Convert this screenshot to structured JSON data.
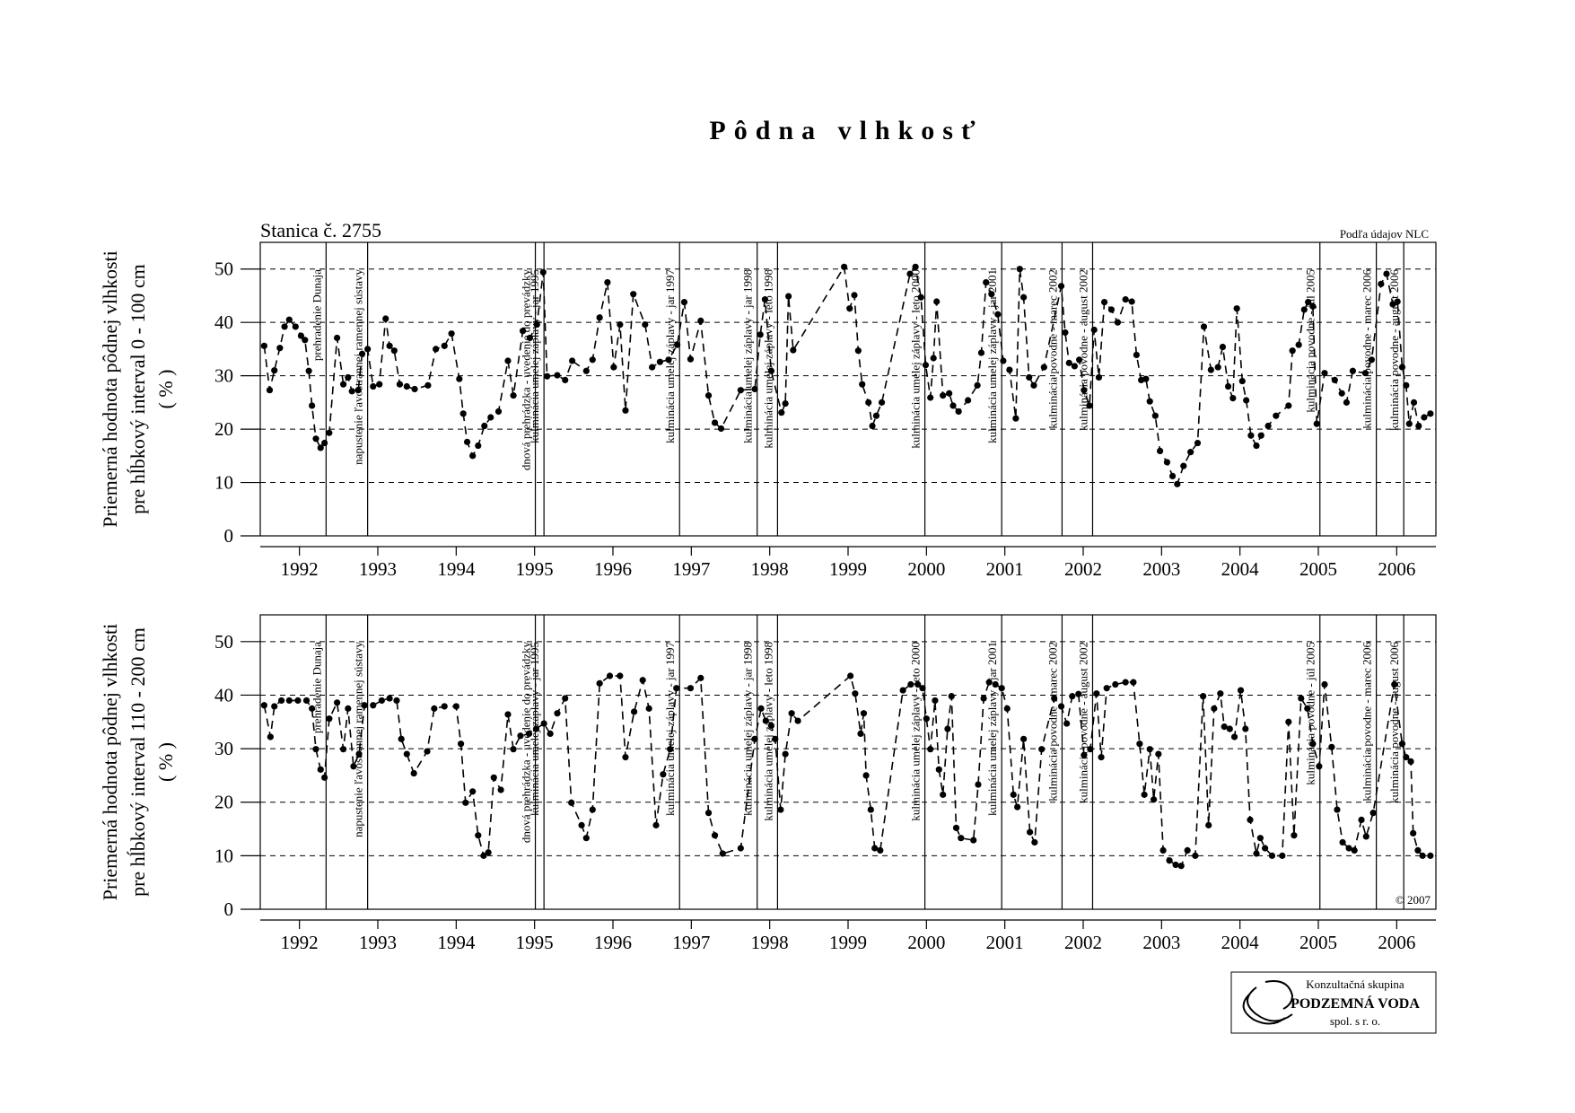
{
  "title": "Pôdna vlhkosť",
  "chart_data": [
    {
      "type": "line",
      "color": "#000000",
      "line_style": "dashed",
      "marker": "circle",
      "y_label": [
        "Priemerná hodnota pôdnej vlhkosti",
        "pre hĺbkový interval 0 - 100 cm",
        "( % )"
      ],
      "annotations": {
        "station": "Stanica č. 2755",
        "source": "Podľa údajov NLC"
      },
      "xlim": [
        1992,
        2007
      ],
      "ylim": [
        0,
        55
      ],
      "yticks": [
        0,
        10,
        20,
        30,
        40,
        50
      ],
      "grid": true,
      "xticks": [
        {
          "value": 1992.5,
          "label": "1992"
        },
        {
          "value": 1993.5,
          "label": "1993"
        },
        {
          "value": 1994.5,
          "label": "1994"
        },
        {
          "value": 1995.5,
          "label": "1995"
        },
        {
          "value": 1996.5,
          "label": "1996"
        },
        {
          "value": 1997.5,
          "label": "1997"
        },
        {
          "value": 1998.5,
          "label": "1998"
        },
        {
          "value": 1999.5,
          "label": "1999"
        },
        {
          "value": 2000.5,
          "label": "2000"
        },
        {
          "value": 2001.5,
          "label": "2001"
        },
        {
          "value": 2002.5,
          "label": "2002"
        },
        {
          "value": 2003.5,
          "label": "2003"
        },
        {
          "value": 2004.5,
          "label": "2004"
        },
        {
          "value": 2005.5,
          "label": "2005"
        },
        {
          "value": 2006.5,
          "label": "2006"
        }
      ],
      "events": [
        {
          "x": 1992.84,
          "label": "prehradenie Dunaja"
        },
        {
          "x": 1993.37,
          "label": "napustenie ľavostrannej ramennej sústavy"
        },
        {
          "x": 1995.51,
          "label": "dnová prehrádzka - uvedenie do prevádzky"
        },
        {
          "x": 1995.62,
          "label": "kulminácia umelej záplavy - jar 1995"
        },
        {
          "x": 1997.35,
          "label": "kulminácia umelej záplavy - jar 1997"
        },
        {
          "x": 1998.34,
          "label": "kulminácia umelej záplavy - jar 1998"
        },
        {
          "x": 1998.6,
          "label": "kulminácia umelej záplavy - leto 1998"
        },
        {
          "x": 2000.48,
          "label": "kulminácia umelej záplavy - leto 2000"
        },
        {
          "x": 2001.46,
          "label": "kulminácia umelej záplavy - jar 2001"
        },
        {
          "x": 2002.23,
          "label": "kulminácia povodne - marec 2002"
        },
        {
          "x": 2002.62,
          "label": "kulminácia povodne - august 2002"
        },
        {
          "x": 2005.52,
          "label": "kulminácia povodne - júl 2005"
        },
        {
          "x": 2006.24,
          "label": "kulminácia povodne - marec 2006"
        },
        {
          "x": 2006.59,
          "label": "kulminácia povodne - august 2006"
        }
      ],
      "x": [
        1992.05,
        1992.12,
        1992.18,
        1992.25,
        1992.31,
        1992.37,
        1992.45,
        1992.52,
        1992.57,
        1992.62,
        1992.66,
        1992.71,
        1992.77,
        1992.82,
        1992.88,
        1992.98,
        1993.06,
        1993.12,
        1993.17,
        1993.25,
        1993.3,
        1993.37,
        1993.44,
        1993.52,
        1993.6,
        1993.65,
        1993.71,
        1993.78,
        1993.87,
        1993.97,
        1994.14,
        1994.24,
        1994.35,
        1994.44,
        1994.54,
        1994.59,
        1994.64,
        1994.71,
        1994.78,
        1994.86,
        1994.94,
        1995.04,
        1995.16,
        1995.23,
        1995.35,
        1995.44,
        1995.53,
        1995.61,
        1995.66,
        1995.79,
        1995.89,
        1995.98,
        1996.16,
        1996.24,
        1996.33,
        1996.43,
        1996.51,
        1996.59,
        1996.66,
        1996.76,
        1996.91,
        1997.0,
        1997.1,
        1997.21,
        1997.32,
        1997.41,
        1997.49,
        1997.62,
        1997.72,
        1997.8,
        1997.88,
        1998.13,
        1998.31,
        1998.38,
        1998.44,
        1998.52,
        1998.65,
        1998.7,
        1998.74,
        1998.8,
        1999.45,
        1999.52,
        1999.58,
        1999.63,
        1999.68,
        1999.76,
        1999.81,
        1999.86,
        1999.93,
        2000.29,
        2000.36,
        2000.43,
        2000.49,
        2000.55,
        2000.59,
        2000.63,
        2000.71,
        2000.79,
        2000.84,
        2000.91,
        2001.03,
        2001.15,
        2001.2,
        2001.26,
        2001.33,
        2001.41,
        2001.48,
        2001.56,
        2001.64,
        2001.69,
        2001.74,
        2001.81,
        2001.87,
        2002.0,
        2002.22,
        2002.27,
        2002.32,
        2002.39,
        2002.45,
        2002.51,
        2002.58,
        2002.64,
        2002.7,
        2002.77,
        2002.86,
        2002.94,
        2003.04,
        2003.12,
        2003.18,
        2003.24,
        2003.3,
        2003.35,
        2003.42,
        2003.48,
        2003.57,
        2003.64,
        2003.7,
        2003.78,
        2003.87,
        2003.96,
        2004.04,
        2004.13,
        2004.22,
        2004.28,
        2004.35,
        2004.41,
        2004.46,
        2004.53,
        2004.58,
        2004.64,
        2004.71,
        2004.77,
        2004.86,
        2004.96,
        2005.12,
        2005.17,
        2005.25,
        2005.32,
        2005.37,
        2005.43,
        2005.48,
        2005.58,
        2005.71,
        2005.8,
        2005.86,
        2005.94,
        2006.1,
        2006.18,
        2006.3,
        2006.37,
        2006.45,
        2006.51,
        2006.57,
        2006.62,
        2006.66,
        2006.72,
        2006.78,
        2006.85,
        2006.93
      ],
      "values": [
        35.6,
        27.3,
        31,
        35.2,
        39.2,
        40.5,
        39.2,
        37.5,
        36.7,
        30.9,
        24.4,
        18.2,
        16.5,
        17.4,
        19.3,
        37.1,
        28.4,
        29.7,
        27.1,
        27.3,
        34.1,
        35,
        28,
        28.4,
        40.7,
        35.6,
        34.7,
        28.4,
        28,
        27.5,
        28.2,
        35,
        35.6,
        37.9,
        29.4,
        22.9,
        17.6,
        15,
        16.9,
        20.6,
        22.2,
        23.3,
        32.8,
        26.3,
        38.4,
        37.1,
        39.6,
        49.4,
        29.9,
        30.1,
        29.2,
        32.8,
        30.9,
        33,
        40.9,
        47.5,
        31.6,
        39.6,
        23.5,
        45.3,
        39.6,
        31.6,
        32.6,
        33,
        35.8,
        43.8,
        33.1,
        40.3,
        26.3,
        21.2,
        20.1,
        27.3,
        27.5,
        37.7,
        44.3,
        30.9,
        23.1,
        24.8,
        44.9,
        34.8,
        50.4,
        42.6,
        45.1,
        34.7,
        28.4,
        25,
        20.6,
        22.5,
        25,
        49.1,
        50.4,
        44.7,
        32,
        25.9,
        33.3,
        43.9,
        26.3,
        26.7,
        24.4,
        23.3,
        25.4,
        28.2,
        34.3,
        47.5,
        45.3,
        41.5,
        32.8,
        31.1,
        22,
        50,
        44.7,
        29.7,
        28.2,
        31.6,
        46.8,
        38.1,
        32.4,
        31.8,
        33,
        27.3,
        24.4,
        38.6,
        29.7,
        43.8,
        42.4,
        40,
        44.3,
        43.9,
        33.9,
        29.2,
        29.4,
        25.2,
        22.5,
        15.9,
        13.8,
        11.2,
        9.7,
        13.1,
        15.7,
        17.4,
        39.2,
        31.1,
        31.6,
        35.4,
        28,
        25.8,
        42.6,
        29,
        25.4,
        18.8,
        16.9,
        18.8,
        20.6,
        22.5,
        24.4,
        34.7,
        35.8,
        42.4,
        43.8,
        43,
        21,
        30.5,
        29.2,
        26.7,
        25,
        30.9,
        30.5,
        33,
        47.2,
        49.1,
        43.4,
        43.9,
        31.6,
        28.2,
        21,
        25,
        20.6,
        22.2,
        22.9
      ]
    },
    {
      "type": "line",
      "color": "#000000",
      "line_style": "dashed",
      "marker": "circle",
      "y_label": [
        "Priemerná hodnota pôdnej vlhkosti",
        "pre hĺbkový interval 110 - 200 cm",
        "( % )"
      ],
      "annotations": {
        "copyright": "© 2007"
      },
      "xlim": [
        1992,
        2007
      ],
      "ylim": [
        0,
        55
      ],
      "yticks": [
        0,
        10,
        20,
        30,
        40,
        50
      ],
      "grid": true,
      "xticks": [
        {
          "value": 1992.5,
          "label": "1992"
        },
        {
          "value": 1993.5,
          "label": "1993"
        },
        {
          "value": 1994.5,
          "label": "1994"
        },
        {
          "value": 1995.5,
          "label": "1995"
        },
        {
          "value": 1996.5,
          "label": "1996"
        },
        {
          "value": 1997.5,
          "label": "1997"
        },
        {
          "value": 1998.5,
          "label": "1998"
        },
        {
          "value": 1999.5,
          "label": "1999"
        },
        {
          "value": 2000.5,
          "label": "2000"
        },
        {
          "value": 2001.5,
          "label": "2001"
        },
        {
          "value": 2002.5,
          "label": "2002"
        },
        {
          "value": 2003.5,
          "label": "2003"
        },
        {
          "value": 2004.5,
          "label": "2004"
        },
        {
          "value": 2005.5,
          "label": "2005"
        },
        {
          "value": 2006.5,
          "label": "2006"
        }
      ],
      "events": [
        {
          "x": 1992.84,
          "label": "prehradenie Dunaja"
        },
        {
          "x": 1993.37,
          "label": "napustenie ľavostrannej ramennej sústavy"
        },
        {
          "x": 1995.51,
          "label": "dnová prehrádzka - uvedenie do prevádzky"
        },
        {
          "x": 1995.62,
          "label": "kulminácia umelej záplavy - jar 1995"
        },
        {
          "x": 1997.35,
          "label": "kulminácia umelej záplavy - jar 1997"
        },
        {
          "x": 1998.34,
          "label": "kulminácia umelej záplavy - jar 1998"
        },
        {
          "x": 1998.6,
          "label": "kulminácia umelej záplavy - leto 1998"
        },
        {
          "x": 2000.48,
          "label": "kulminácia umelej záplavy - leto 2000"
        },
        {
          "x": 2001.46,
          "label": "kulminácia umelej záplavy - jar 2001"
        },
        {
          "x": 2002.23,
          "label": "kulminácia povodne - marec 2002"
        },
        {
          "x": 2002.62,
          "label": "kulminácia povodne - august 2002"
        },
        {
          "x": 2005.52,
          "label": "kulminácia povodne - júl 2005"
        },
        {
          "x": 2006.24,
          "label": "kulminácia povodne - marec 2006"
        },
        {
          "x": 2006.59,
          "label": "kulminácia povodne - august 2006"
        }
      ],
      "x": [
        1992.05,
        1992.13,
        1992.18,
        1992.27,
        1992.37,
        1992.48,
        1992.59,
        1992.66,
        1992.71,
        1992.77,
        1992.82,
        1992.88,
        1992.98,
        1993.06,
        1993.12,
        1993.19,
        1993.26,
        1993.33,
        1993.44,
        1993.55,
        1993.65,
        1993.74,
        1993.8,
        1993.87,
        1993.96,
        1994.13,
        1994.22,
        1994.35,
        1994.5,
        1994.56,
        1994.62,
        1994.71,
        1994.78,
        1994.85,
        1994.91,
        1994.98,
        1995.07,
        1995.16,
        1995.23,
        1995.32,
        1995.43,
        1995.52,
        1995.62,
        1995.7,
        1995.79,
        1995.89,
        1995.97,
        1996.1,
        1996.16,
        1996.24,
        1996.33,
        1996.46,
        1996.59,
        1996.66,
        1996.77,
        1996.88,
        1996.96,
        1997.05,
        1997.14,
        1997.23,
        1997.31,
        1997.49,
        1997.62,
        1997.72,
        1997.8,
        1997.9,
        1998.13,
        1998.31,
        1998.39,
        1998.45,
        1998.52,
        1998.57,
        1998.64,
        1998.7,
        1998.78,
        1998.86,
        1999.53,
        1999.59,
        1999.66,
        1999.7,
        1999.73,
        1999.79,
        1999.84,
        1999.91,
        2000.2,
        2000.3,
        2000.39,
        2000.45,
        2000.5,
        2000.55,
        2000.61,
        2000.66,
        2000.71,
        2000.77,
        2000.82,
        2000.88,
        2000.94,
        2001.1,
        2001.16,
        2001.23,
        2001.3,
        2001.38,
        2001.46,
        2001.53,
        2001.61,
        2001.66,
        2001.74,
        2001.82,
        2001.88,
        2001.97,
        2002.13,
        2002.22,
        2002.29,
        2002.36,
        2002.44,
        2002.51,
        2002.59,
        2002.67,
        2002.73,
        2002.8,
        2002.91,
        2003.04,
        2003.14,
        2003.22,
        2003.28,
        2003.35,
        2003.4,
        2003.46,
        2003.52,
        2003.6,
        2003.68,
        2003.75,
        2003.83,
        2003.93,
        2004.03,
        2004.1,
        2004.17,
        2004.25,
        2004.3,
        2004.37,
        2004.43,
        2004.51,
        2004.57,
        2004.63,
        2004.71,
        2004.76,
        2004.82,
        2004.91,
        2005.04,
        2005.12,
        2005.19,
        2005.28,
        2005.36,
        2005.43,
        2005.51,
        2005.58,
        2005.67,
        2005.74,
        2005.81,
        2005.89,
        2005.96,
        2006.05,
        2006.11,
        2006.2,
        2006.47,
        2006.57,
        2006.62,
        2006.68,
        2006.71,
        2006.77,
        2006.83,
        2006.93
      ],
      "values": [
        38.1,
        32.2,
        37.9,
        39,
        39,
        39,
        39,
        37.5,
        29.9,
        26.1,
        24.6,
        35.6,
        38.6,
        29.9,
        37.5,
        26.7,
        29,
        38.1,
        38.1,
        39,
        39.4,
        39,
        31.8,
        29,
        25.4,
        29.5,
        37.5,
        37.9,
        37.9,
        30.9,
        19.9,
        22,
        13.8,
        10,
        10.6,
        24.6,
        22.3,
        36.4,
        29.9,
        32.4,
        32.8,
        33.7,
        34.7,
        32.8,
        36.6,
        39.4,
        19.9,
        15.7,
        13.3,
        18.6,
        42.2,
        43.6,
        43.6,
        28.4,
        36.9,
        42.8,
        37.5,
        15.7,
        25.2,
        29.9,
        41.3,
        41.3,
        43.2,
        18,
        13.8,
        10.4,
        11.4,
        31.8,
        37.5,
        35.2,
        34.3,
        31.8,
        18.6,
        29,
        36.6,
        35.2,
        43.6,
        40.3,
        32.8,
        36.6,
        25,
        18.6,
        11.4,
        11,
        40.9,
        42,
        42,
        41.3,
        35.6,
        29.9,
        39,
        26.1,
        21.4,
        33.7,
        39.8,
        15.2,
        13.3,
        12.9,
        23.3,
        39.4,
        42.4,
        42,
        41.3,
        37.5,
        21.4,
        19.1,
        31.8,
        14.4,
        12.5,
        29.9,
        39.4,
        37.9,
        34.7,
        39.8,
        40.2,
        28.8,
        29.9,
        40.3,
        28.4,
        41.3,
        42,
        42.4,
        42.4,
        30.9,
        21.4,
        29.9,
        20.5,
        29,
        11,
        9.1,
        8.3,
        8.1,
        11,
        10,
        39.8,
        15.7,
        37.5,
        40.3,
        34.1,
        33.7,
        32.2,
        40.9,
        33.7,
        16.7,
        10.4,
        13.3,
        11.4,
        10,
        10,
        35,
        13.8,
        39.4,
        37.5,
        30.9,
        26.7,
        42,
        30.3,
        18.6,
        12.5,
        11.4,
        11,
        16.7,
        13.6,
        18,
        42,
        30.9,
        28.4,
        27.6,
        14.2,
        11,
        10,
        10
      ]
    }
  ],
  "logo": {
    "line1": "Konzultačná skupina",
    "line2": "PODZEMNÁ VODA",
    "line3": "spol. s r. o."
  }
}
